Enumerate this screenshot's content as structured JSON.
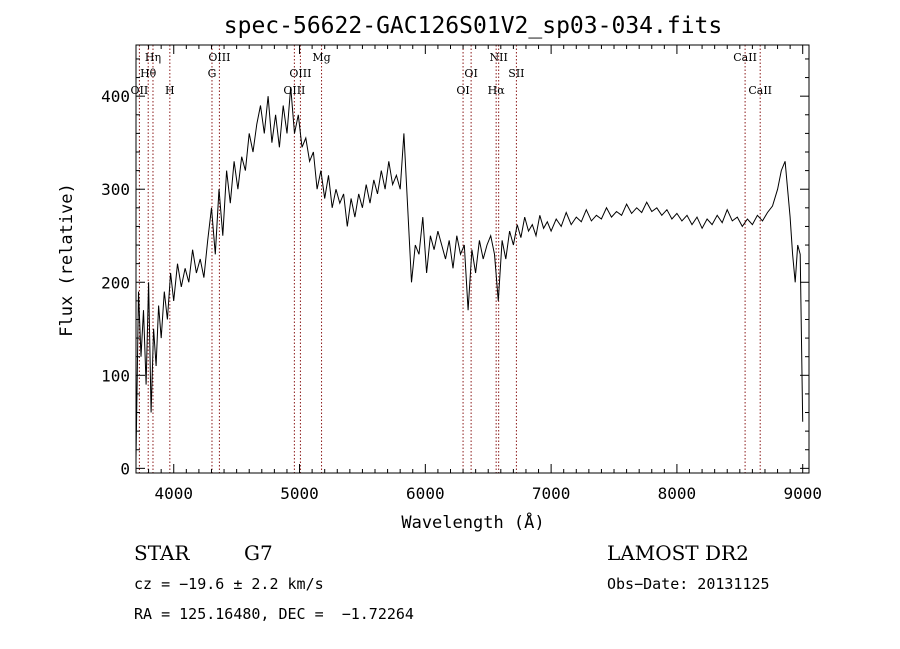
{
  "chart_data": {
    "type": "line",
    "title": "spec-56622-GAC126S01V2_sp03-034.fits",
    "xlabel": "Wavelength (Å)",
    "ylabel": "Flux (relative)",
    "xlim": [
      3700,
      9050
    ],
    "ylim": [
      -5,
      455
    ],
    "xticks": [
      4000,
      5000,
      6000,
      7000,
      8000,
      9000
    ],
    "yticks": [
      0,
      100,
      200,
      300,
      400
    ],
    "grid": false,
    "series_color": "#000000",
    "marker_color": "#8b1a1a",
    "spectral_lines": [
      {
        "label": "Hη",
        "wavelength": 3835,
        "row": 0
      },
      {
        "label": "Hθ",
        "wavelength": 3797,
        "row": 1
      },
      {
        "label": "OII",
        "wavelength": 3727,
        "row": 2
      },
      {
        "label": "H",
        "wavelength": 3969,
        "row": 2
      },
      {
        "label": "OIII",
        "wavelength": 4363,
        "row": 0
      },
      {
        "label": "G",
        "wavelength": 4304,
        "row": 1
      },
      {
        "label": "OIII",
        "wavelength": 5007,
        "row": 1
      },
      {
        "label": "OIII",
        "wavelength": 4959,
        "row": 2
      },
      {
        "label": "Mg",
        "wavelength": 5175,
        "row": 0
      },
      {
        "label": "OI",
        "wavelength": 6364,
        "row": 1
      },
      {
        "label": "OI",
        "wavelength": 6300,
        "row": 2
      },
      {
        "label": "NII",
        "wavelength": 6583,
        "row": 0
      },
      {
        "label": "Hα",
        "wavelength": 6563,
        "row": 2
      },
      {
        "label": "SII",
        "wavelength": 6724,
        "row": 1
      },
      {
        "label": "CaII",
        "wavelength": 8542,
        "row": 0
      },
      {
        "label": "CaII",
        "wavelength": 8662,
        "row": 2
      }
    ],
    "series": [
      {
        "x": [
          3700,
          3720,
          3740,
          3760,
          3780,
          3800,
          3820,
          3840,
          3860,
          3880,
          3900,
          3925,
          3950,
          3975,
          4000,
          4030,
          4060,
          4090,
          4120,
          4150,
          4180,
          4210,
          4240,
          4270,
          4300,
          4330,
          4360,
          4390,
          4420,
          4450,
          4480,
          4510,
          4540,
          4570,
          4600,
          4630,
          4660,
          4690,
          4720,
          4750,
          4780,
          4810,
          4840,
          4870,
          4900,
          4930,
          4960,
          4990,
          5020,
          5050,
          5080,
          5110,
          5140,
          5170,
          5200,
          5230,
          5260,
          5290,
          5320,
          5350,
          5380,
          5410,
          5440,
          5470,
          5500,
          5530,
          5560,
          5590,
          5620,
          5650,
          5680,
          5710,
          5740,
          5770,
          5800,
          5830,
          5860,
          5890,
          5920,
          5950,
          5980,
          6010,
          6040,
          6070,
          6100,
          6130,
          6160,
          6190,
          6220,
          6250,
          6280,
          6310,
          6340,
          6370,
          6400,
          6430,
          6460,
          6490,
          6520,
          6550,
          6580,
          6610,
          6640,
          6670,
          6700,
          6730,
          6760,
          6790,
          6820,
          6850,
          6880,
          6910,
          6940,
          6970,
          7000,
          7040,
          7080,
          7120,
          7160,
          7200,
          7240,
          7280,
          7320,
          7360,
          7400,
          7440,
          7480,
          7520,
          7560,
          7600,
          7640,
          7680,
          7720,
          7760,
          7800,
          7840,
          7880,
          7920,
          7960,
          8000,
          8040,
          8080,
          8120,
          8160,
          8200,
          8240,
          8280,
          8320,
          8360,
          8400,
          8440,
          8480,
          8520,
          8560,
          8600,
          8640,
          8680,
          8720,
          8760,
          8800,
          8830,
          8860,
          8880,
          8900,
          8920,
          8940,
          8960,
          8980,
          9000
        ],
        "y": [
          10,
          190,
          120,
          170,
          90,
          200,
          60,
          150,
          110,
          175,
          140,
          190,
          160,
          210,
          180,
          220,
          195,
          215,
          200,
          235,
          210,
          225,
          205,
          245,
          280,
          230,
          300,
          250,
          320,
          285,
          330,
          300,
          335,
          320,
          360,
          340,
          370,
          390,
          360,
          400,
          350,
          380,
          345,
          390,
          360,
          410,
          360,
          380,
          345,
          355,
          330,
          340,
          300,
          320,
          290,
          315,
          280,
          300,
          285,
          295,
          260,
          290,
          270,
          295,
          280,
          305,
          285,
          310,
          295,
          320,
          300,
          330,
          305,
          315,
          300,
          360,
          280,
          200,
          240,
          230,
          270,
          210,
          250,
          235,
          255,
          240,
          225,
          245,
          215,
          250,
          230,
          240,
          170,
          235,
          210,
          245,
          225,
          240,
          250,
          230,
          180,
          245,
          225,
          255,
          240,
          262,
          248,
          270,
          255,
          262,
          250,
          272,
          258,
          265,
          255,
          268,
          260,
          275,
          262,
          270,
          265,
          278,
          266,
          272,
          268,
          280,
          270,
          276,
          272,
          284,
          274,
          280,
          275,
          286,
          276,
          280,
          272,
          278,
          268,
          274,
          266,
          272,
          262,
          270,
          258,
          268,
          262,
          272,
          264,
          278,
          266,
          270,
          260,
          268,
          262,
          272,
          266,
          275,
          282,
          300,
          320,
          330,
          300,
          270,
          230,
          200,
          240,
          230,
          50
        ]
      }
    ]
  },
  "info": {
    "object_class": "STAR",
    "subclass": "G7",
    "redshift_line": "cz = −19.6 ± 2.2 km/s",
    "coords_line": "RA = 125.16480, DEC =  −1.72264",
    "survey": "LAMOST DR2",
    "obs_date": "Obs−Date: 20131125"
  }
}
